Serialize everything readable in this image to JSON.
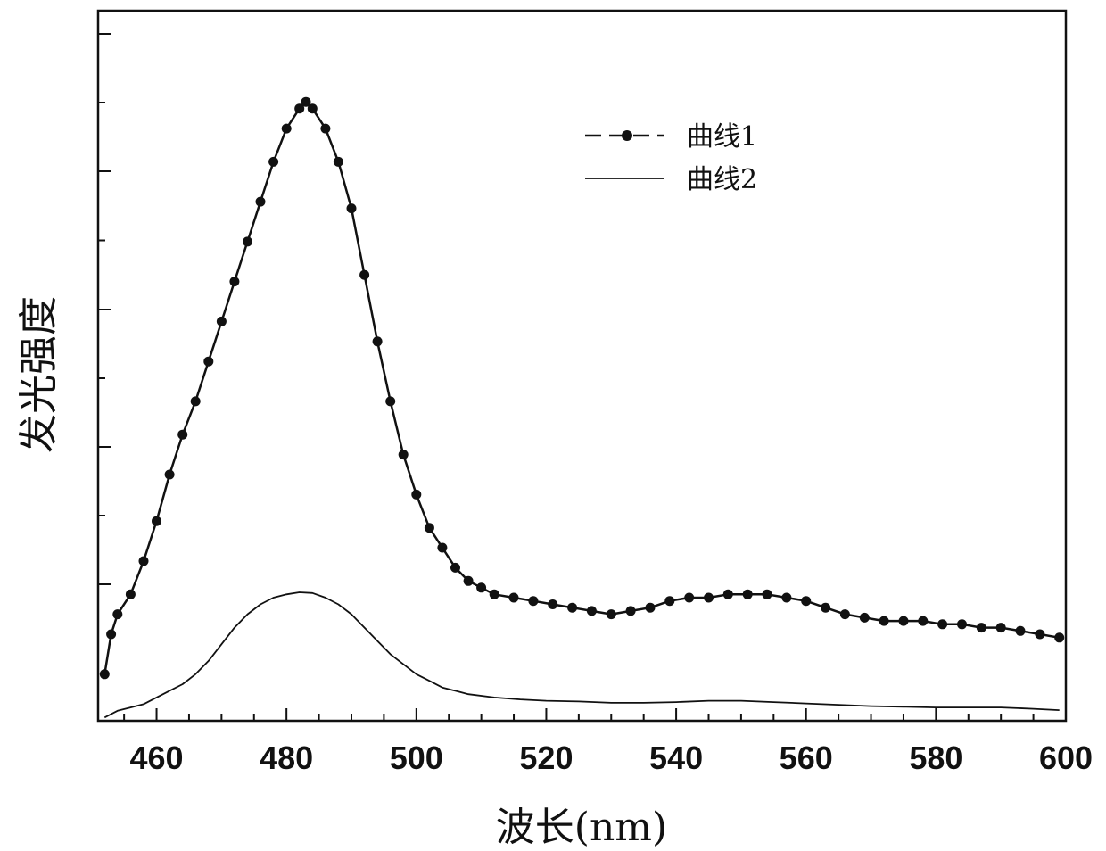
{
  "chart_data": {
    "type": "line",
    "title": "",
    "xlabel": "波长(nm)",
    "ylabel": "发光强度",
    "xlim": [
      451,
      600
    ],
    "ylim": [
      0,
      100
    ],
    "xticks": [
      460,
      480,
      500,
      520,
      540,
      560,
      580,
      600
    ],
    "yticks_labeled": false,
    "grid": false,
    "legend_position": "top-right",
    "series": [
      {
        "name": "曲线1",
        "style": "dashed-with-markers",
        "color": "#111111",
        "points": [
          [
            452,
            7
          ],
          [
            453,
            13
          ],
          [
            454,
            16
          ],
          [
            456,
            19
          ],
          [
            458,
            24
          ],
          [
            460,
            30
          ],
          [
            462,
            37
          ],
          [
            464,
            43
          ],
          [
            466,
            48
          ],
          [
            468,
            54
          ],
          [
            470,
            60
          ],
          [
            472,
            66
          ],
          [
            474,
            72
          ],
          [
            476,
            78
          ],
          [
            478,
            84
          ],
          [
            480,
            89
          ],
          [
            482,
            92
          ],
          [
            483,
            93
          ],
          [
            484,
            92
          ],
          [
            486,
            89
          ],
          [
            488,
            84
          ],
          [
            490,
            77
          ],
          [
            492,
            67
          ],
          [
            494,
            57
          ],
          [
            496,
            48
          ],
          [
            498,
            40
          ],
          [
            500,
            34
          ],
          [
            502,
            29
          ],
          [
            504,
            26
          ],
          [
            506,
            23
          ],
          [
            508,
            21
          ],
          [
            510,
            20
          ],
          [
            512,
            19
          ],
          [
            515,
            18.5
          ],
          [
            518,
            18
          ],
          [
            521,
            17.5
          ],
          [
            524,
            17
          ],
          [
            527,
            16.5
          ],
          [
            530,
            16
          ],
          [
            533,
            16.5
          ],
          [
            536,
            17
          ],
          [
            539,
            18
          ],
          [
            542,
            18.5
          ],
          [
            545,
            18.5
          ],
          [
            548,
            19
          ],
          [
            551,
            19
          ],
          [
            554,
            19
          ],
          [
            557,
            18.5
          ],
          [
            560,
            18
          ],
          [
            563,
            17
          ],
          [
            566,
            16
          ],
          [
            569,
            15.5
          ],
          [
            572,
            15
          ],
          [
            575,
            15
          ],
          [
            578,
            15
          ],
          [
            581,
            14.5
          ],
          [
            584,
            14.5
          ],
          [
            587,
            14
          ],
          [
            590,
            14
          ],
          [
            593,
            13.5
          ],
          [
            596,
            13
          ],
          [
            599,
            12.5
          ]
        ]
      },
      {
        "name": "曲线2",
        "style": "solid",
        "color": "#111111",
        "points": [
          [
            452,
            0.5
          ],
          [
            454,
            1.5
          ],
          [
            456,
            2
          ],
          [
            458,
            2.5
          ],
          [
            460,
            3.5
          ],
          [
            462,
            4.5
          ],
          [
            464,
            5.5
          ],
          [
            466,
            7
          ],
          [
            468,
            9
          ],
          [
            470,
            11.5
          ],
          [
            472,
            14
          ],
          [
            474,
            16
          ],
          [
            476,
            17.5
          ],
          [
            478,
            18.5
          ],
          [
            480,
            19
          ],
          [
            482,
            19.3
          ],
          [
            484,
            19.2
          ],
          [
            486,
            18.5
          ],
          [
            488,
            17.5
          ],
          [
            490,
            16
          ],
          [
            492,
            14
          ],
          [
            494,
            12
          ],
          [
            496,
            10
          ],
          [
            498,
            8.5
          ],
          [
            500,
            7
          ],
          [
            502,
            6
          ],
          [
            504,
            5
          ],
          [
            506,
            4.5
          ],
          [
            508,
            4
          ],
          [
            512,
            3.5
          ],
          [
            516,
            3.2
          ],
          [
            520,
            3
          ],
          [
            525,
            2.9
          ],
          [
            530,
            2.7
          ],
          [
            535,
            2.7
          ],
          [
            540,
            2.8
          ],
          [
            545,
            3
          ],
          [
            550,
            3
          ],
          [
            555,
            2.8
          ],
          [
            560,
            2.6
          ],
          [
            565,
            2.4
          ],
          [
            570,
            2.2
          ],
          [
            575,
            2.1
          ],
          [
            580,
            2
          ],
          [
            585,
            2
          ],
          [
            590,
            2
          ],
          [
            595,
            1.8
          ],
          [
            599,
            1.6
          ]
        ]
      }
    ]
  }
}
